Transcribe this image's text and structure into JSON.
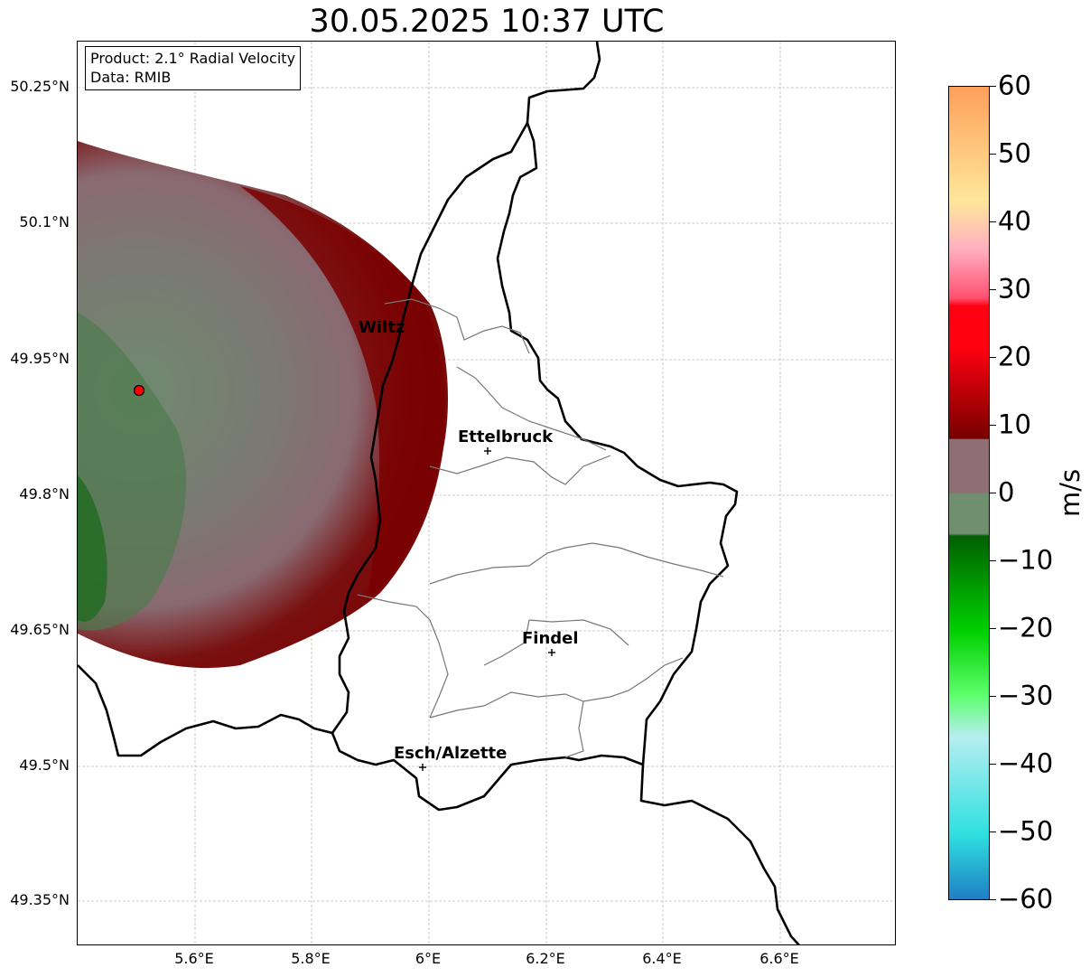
{
  "title": "30.05.2025 10:37 UTC",
  "info": {
    "product": "Product: 2.1° Radial Velocity",
    "data_source": "Data: RMIB"
  },
  "map": {
    "lat_labels": [
      "50.25°N",
      "50.1°N",
      "49.95°N",
      "49.8°N",
      "49.65°N",
      "49.5°N",
      "49.35°N"
    ],
    "lon_labels": [
      "5.6°E",
      "5.8°E",
      "6°E",
      "6.2°E",
      "6.4°E",
      "6.6°E"
    ],
    "cities": [
      {
        "name": "Wiltz"
      },
      {
        "name": "Ettelbruck"
      },
      {
        "name": "Findel"
      },
      {
        "name": "Esch/Alzette"
      }
    ],
    "radar_marker_color": "#ff0000"
  },
  "colorbar": {
    "unit": "m/s",
    "ticks": [
      "60",
      "50",
      "40",
      "30",
      "20",
      "10",
      "0",
      "−10",
      "−20",
      "−30",
      "−40",
      "−50",
      "−60"
    ],
    "range": [
      -60,
      60
    ],
    "colors": {
      "neg_far": "#1f7fc4",
      "neg_cyan": "#2fe0e0",
      "neg_light": "#b5eef0",
      "neg_green_light": "#5fff6f",
      "neg_green": "#00d000",
      "neg_dark_green": "#006000",
      "zero_green": "#6f8f6f",
      "zero_mauve": "#8f6f75",
      "pos_dark_red": "#7a0000",
      "pos_red": "#ff0010",
      "pos_pink": "#ff5070",
      "pos_light_pink": "#ffb0c0",
      "pos_yellow": "#ffe79a",
      "pos_orange": "#ff9f5a"
    }
  }
}
